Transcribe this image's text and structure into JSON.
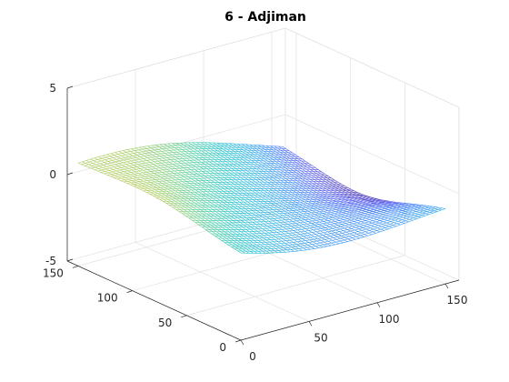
{
  "chart_data": {
    "type": "surface-mesh",
    "title": "6 - Adjiman",
    "x": {
      "ticks": [
        0,
        50,
        100,
        150
      ],
      "range": [
        0,
        160
      ]
    },
    "y": {
      "ticks": [
        0,
        50,
        100,
        150
      ],
      "range": [
        0,
        160
      ]
    },
    "z": {
      "ticks": [
        -5,
        0,
        5
      ],
      "range": [
        -5,
        5
      ]
    },
    "grid": true,
    "colormap": "parula"
  }
}
